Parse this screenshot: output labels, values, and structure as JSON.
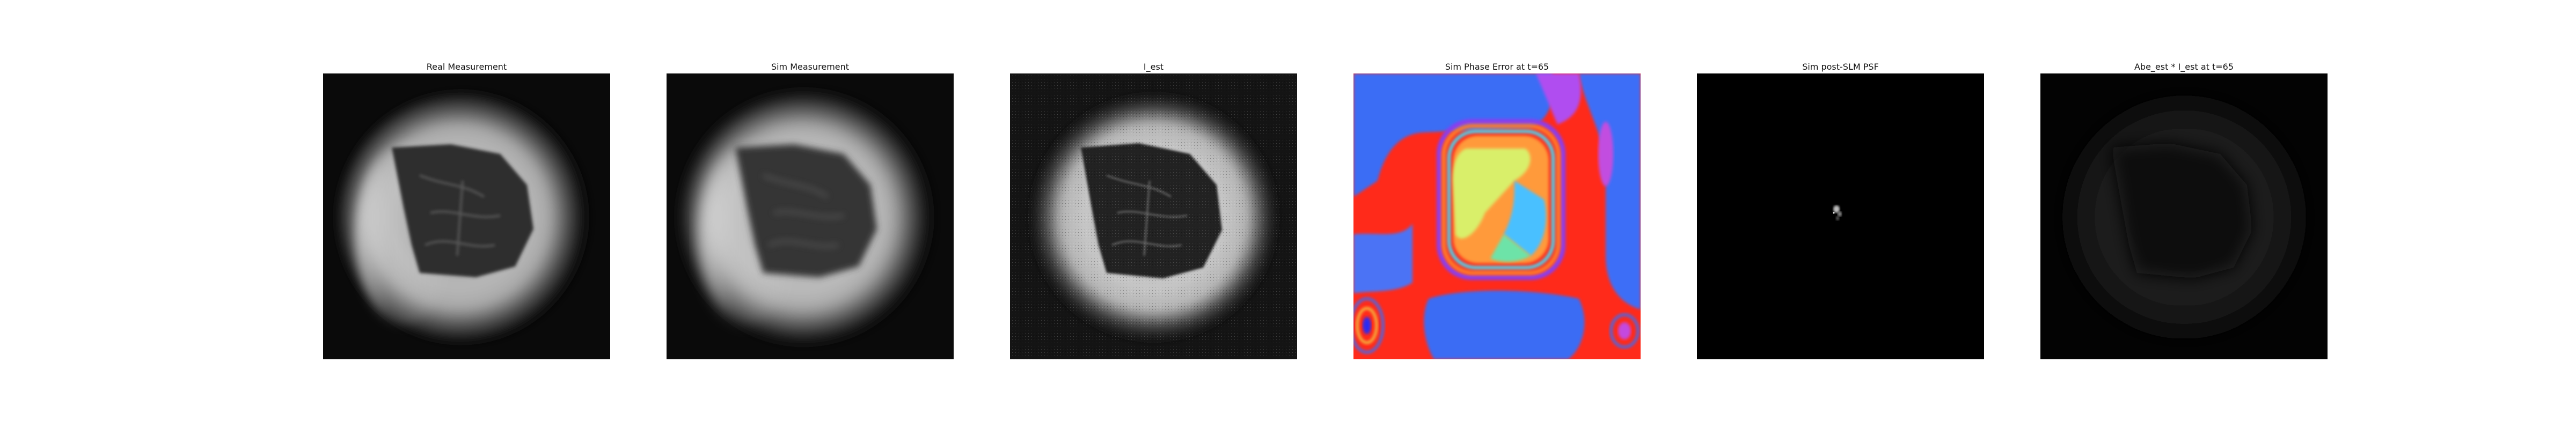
{
  "figure": {
    "panels": [
      {
        "id": "real-measurement",
        "title": "Real Measurement",
        "colormap": "gray"
      },
      {
        "id": "sim-measurement",
        "title": "Sim Measurement",
        "colormap": "gray"
      },
      {
        "id": "i-est",
        "title": "I_est",
        "colormap": "gray"
      },
      {
        "id": "sim-phase-error",
        "title": "Sim Phase Error at t=65",
        "colormap": "hsv"
      },
      {
        "id": "sim-post-slm-psf",
        "title": "Sim post-SLM PSF",
        "colormap": "gray"
      },
      {
        "id": "abe-est-i-est",
        "title": "Abe_est * I_est at t=65",
        "colormap": "gray"
      }
    ]
  }
}
